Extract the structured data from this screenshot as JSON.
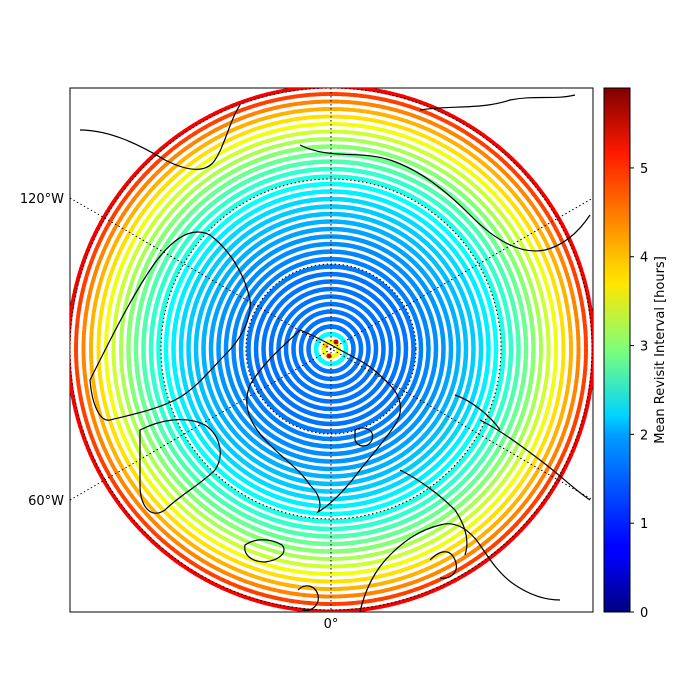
{
  "map": {
    "projection": "north-polar-stereographic",
    "lon_labels": {
      "left_upper": "120°W",
      "left_lower": "60°W",
      "bottom": "0°"
    },
    "gridlines": "dotted",
    "coastlines": true
  },
  "colorbar": {
    "label": "Mean Revisit Interval [hours]",
    "colormap": "jet",
    "range": [
      0,
      5.9
    ],
    "ticks": [
      "0",
      "1",
      "2",
      "3",
      "4",
      "5"
    ]
  },
  "chart_data": {
    "type": "scatter",
    "description_of_values": "revisit interval increases with distance from pole",
    "rings": [
      {
        "ring": 1,
        "value": 3.6
      },
      {
        "ring": 2,
        "value": 2.2
      },
      {
        "ring": 3,
        "value": 1.4
      },
      {
        "ring": 10,
        "value": 1.4
      },
      {
        "ring": 15,
        "value": 1.6
      },
      {
        "ring": 20,
        "value": 2.0
      },
      {
        "ring": 24,
        "value": 2.5
      },
      {
        "ring": 27,
        "value": 3.0
      },
      {
        "ring": 30,
        "value": 3.6
      },
      {
        "ring": 33,
        "value": 4.4
      },
      {
        "ring": 35,
        "value": 5.2
      }
    ]
  }
}
